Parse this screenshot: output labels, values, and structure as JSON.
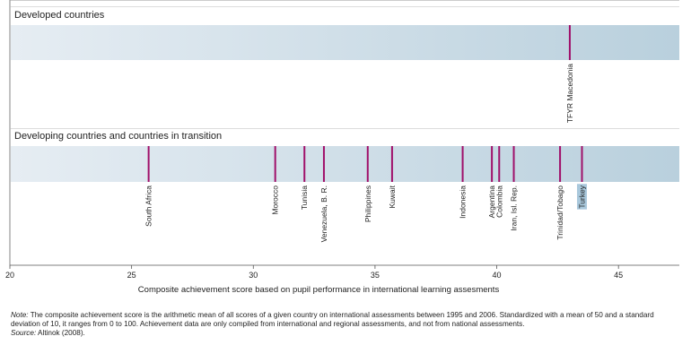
{
  "chart_data": {
    "type": "strip",
    "xlabel": "Composite achievement score based on pupil performance in international learning assesments",
    "xlim": [
      20,
      47.5
    ],
    "xticks": [
      20,
      25,
      30,
      35,
      40,
      45
    ],
    "colors": {
      "marker": "#a0106a",
      "band_start": "#e6edf3",
      "band_end": "#b9d0dd",
      "highlight": "#a9c8dc"
    },
    "groups": [
      {
        "title": "Developed countries",
        "countries": [
          {
            "name": "TFYR Macedonia",
            "value": 43.0
          }
        ]
      },
      {
        "title": "Developing countries and countries in transition",
        "countries": [
          {
            "name": "South Africa",
            "value": 25.7
          },
          {
            "name": "Morocco",
            "value": 30.9
          },
          {
            "name": "Tunisia",
            "value": 32.1
          },
          {
            "name": "Venezuela, B. R.",
            "value": 32.9
          },
          {
            "name": "Philippines",
            "value": 34.7
          },
          {
            "name": "Kuwait",
            "value": 35.7
          },
          {
            "name": "Indonesia",
            "value": 38.6
          },
          {
            "name": "Argentina",
            "value": 39.8
          },
          {
            "name": "Colombia",
            "value": 40.1
          },
          {
            "name": "Iran, Isl. Rep.",
            "value": 40.7
          },
          {
            "name": "Trinidad/Tobago",
            "value": 42.6
          },
          {
            "name": "Turkey",
            "value": 43.5,
            "highlight": true
          }
        ]
      }
    ]
  },
  "note": {
    "lead": "Note:",
    "text": " The composite achievement score is the arithmetic mean of all scores of a given country on international assessments between 1995 and 2006. Standardized with a mean of 50 and a standard deviation of 10, it ranges from 0 to 100. Achievement data are only compiled from international and regional assessments, and not from national assessments.",
    "source_lead": "Source:",
    "source_text": " Altinok (2008)."
  }
}
